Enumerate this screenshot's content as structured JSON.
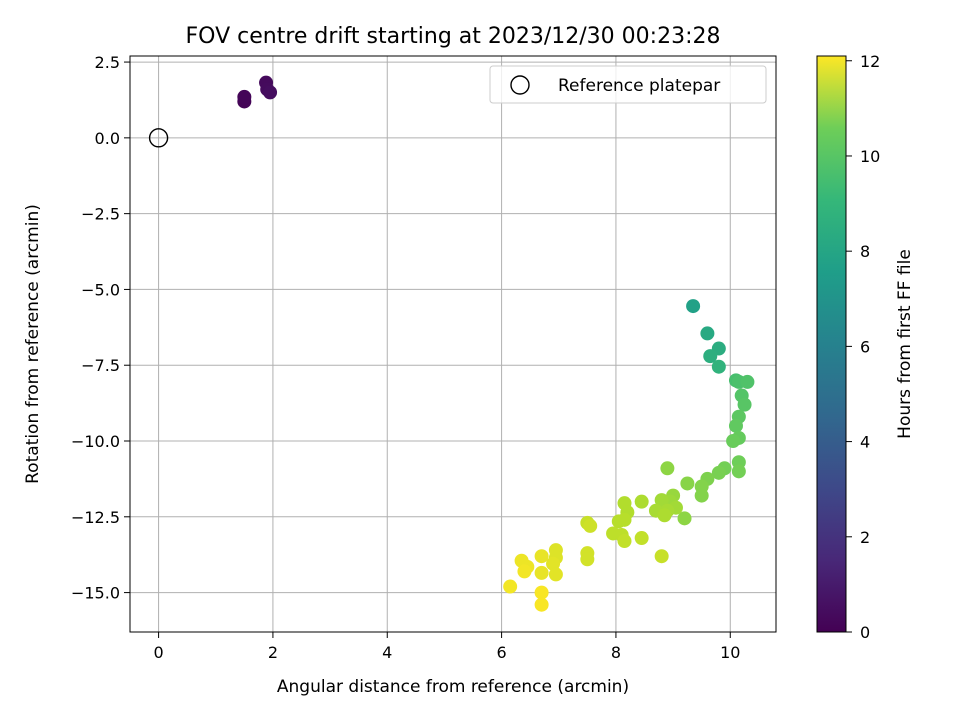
{
  "chart_data": {
    "type": "scatter",
    "title": "FOV centre drift starting at 2023/12/30 00:23:28",
    "xlabel": "Angular distance from reference (arcmin)",
    "ylabel": "Rotation from reference (arcmin)",
    "xlim": [
      -0.5,
      10.8
    ],
    "ylim": [
      -16.3,
      2.7
    ],
    "xticks": [
      "0",
      "2",
      "4",
      "6",
      "8",
      "10"
    ],
    "yticks": [
      "2.5",
      "0.0",
      "−2.5",
      "−5.0",
      "−7.5",
      "−10.0",
      "−12.5",
      "−15.0"
    ],
    "grid": true,
    "legend": {
      "position": "top-right",
      "entries": [
        "Reference platepar"
      ]
    },
    "reference_point": {
      "x": 0,
      "y": 0
    },
    "colorbar": {
      "label": "Hours from first FF file",
      "range": [
        0,
        12.1
      ],
      "ticks": [
        "0",
        "2",
        "4",
        "6",
        "8",
        "10",
        "12"
      ],
      "colormap": "viridis"
    },
    "series": [
      {
        "points": [
          {
            "x": 1.5,
            "y": 1.2,
            "c": 0.1
          },
          {
            "x": 1.5,
            "y": 1.35,
            "c": 0.15
          },
          {
            "x": 1.88,
            "y": 1.82,
            "c": 0.3
          },
          {
            "x": 1.9,
            "y": 1.6,
            "c": 0.35
          },
          {
            "x": 1.95,
            "y": 1.5,
            "c": 0.4
          },
          {
            "x": 9.35,
            "y": -5.55,
            "c": 6.9
          },
          {
            "x": 9.6,
            "y": -6.45,
            "c": 7.3
          },
          {
            "x": 9.8,
            "y": -6.95,
            "c": 7.5
          },
          {
            "x": 9.65,
            "y": -7.2,
            "c": 7.6
          },
          {
            "x": 9.8,
            "y": -7.55,
            "c": 7.8
          },
          {
            "x": 10.1,
            "y": -8.0,
            "c": 8.5
          },
          {
            "x": 10.15,
            "y": -8.05,
            "c": 8.6
          },
          {
            "x": 10.3,
            "y": -8.05,
            "c": 8.7
          },
          {
            "x": 10.2,
            "y": -8.5,
            "c": 8.8
          },
          {
            "x": 10.25,
            "y": -8.8,
            "c": 8.9
          },
          {
            "x": 10.15,
            "y": -9.2,
            "c": 9.0
          },
          {
            "x": 10.1,
            "y": -9.5,
            "c": 9.1
          },
          {
            "x": 10.15,
            "y": -9.9,
            "c": 9.2
          },
          {
            "x": 10.05,
            "y": -10.0,
            "c": 9.3
          },
          {
            "x": 10.15,
            "y": -10.7,
            "c": 9.4
          },
          {
            "x": 10.15,
            "y": -11.0,
            "c": 9.5
          },
          {
            "x": 9.9,
            "y": -10.9,
            "c": 9.5
          },
          {
            "x": 9.8,
            "y": -11.05,
            "c": 9.6
          },
          {
            "x": 9.6,
            "y": -11.25,
            "c": 9.7
          },
          {
            "x": 9.5,
            "y": -11.5,
            "c": 9.8
          },
          {
            "x": 9.5,
            "y": -11.8,
            "c": 9.8
          },
          {
            "x": 9.25,
            "y": -11.4,
            "c": 9.9
          },
          {
            "x": 9.2,
            "y": -12.55,
            "c": 10.0
          },
          {
            "x": 8.9,
            "y": -10.9,
            "c": 10.0
          },
          {
            "x": 9.0,
            "y": -11.8,
            "c": 10.2
          },
          {
            "x": 8.95,
            "y": -12.0,
            "c": 10.3
          },
          {
            "x": 8.85,
            "y": -12.1,
            "c": 10.3
          },
          {
            "x": 8.8,
            "y": -11.95,
            "c": 10.4
          },
          {
            "x": 9.05,
            "y": -12.2,
            "c": 10.4
          },
          {
            "x": 8.9,
            "y": -12.3,
            "c": 10.5
          },
          {
            "x": 8.7,
            "y": -12.3,
            "c": 10.5
          },
          {
            "x": 8.85,
            "y": -12.45,
            "c": 10.6
          },
          {
            "x": 8.45,
            "y": -12.0,
            "c": 10.6
          },
          {
            "x": 8.15,
            "y": -12.05,
            "c": 10.7
          },
          {
            "x": 8.2,
            "y": -12.35,
            "c": 10.7
          },
          {
            "x": 8.15,
            "y": -12.6,
            "c": 10.8
          },
          {
            "x": 8.05,
            "y": -12.65,
            "c": 10.8
          },
          {
            "x": 7.95,
            "y": -13.05,
            "c": 10.9
          },
          {
            "x": 8.1,
            "y": -13.1,
            "c": 10.9
          },
          {
            "x": 8.15,
            "y": -13.3,
            "c": 11.0
          },
          {
            "x": 8.45,
            "y": -13.2,
            "c": 11.0
          },
          {
            "x": 8.8,
            "y": -13.8,
            "c": 11.1
          },
          {
            "x": 7.5,
            "y": -12.7,
            "c": 11.1
          },
          {
            "x": 7.55,
            "y": -12.8,
            "c": 11.2
          },
          {
            "x": 7.5,
            "y": -13.7,
            "c": 11.3
          },
          {
            "x": 7.5,
            "y": -13.9,
            "c": 11.3
          },
          {
            "x": 6.95,
            "y": -13.6,
            "c": 11.5
          },
          {
            "x": 6.95,
            "y": -13.85,
            "c": 11.5
          },
          {
            "x": 6.9,
            "y": -14.05,
            "c": 11.6
          },
          {
            "x": 6.95,
            "y": -14.4,
            "c": 11.6
          },
          {
            "x": 6.7,
            "y": -13.8,
            "c": 11.7
          },
          {
            "x": 6.7,
            "y": -14.35,
            "c": 11.7
          },
          {
            "x": 6.35,
            "y": -13.95,
            "c": 11.8
          },
          {
            "x": 6.45,
            "y": -14.15,
            "c": 11.8
          },
          {
            "x": 6.4,
            "y": -14.3,
            "c": 11.9
          },
          {
            "x": 6.15,
            "y": -14.8,
            "c": 11.9
          },
          {
            "x": 6.7,
            "y": -15.0,
            "c": 12.0
          },
          {
            "x": 6.7,
            "y": -15.4,
            "c": 12.0
          }
        ]
      }
    ]
  }
}
